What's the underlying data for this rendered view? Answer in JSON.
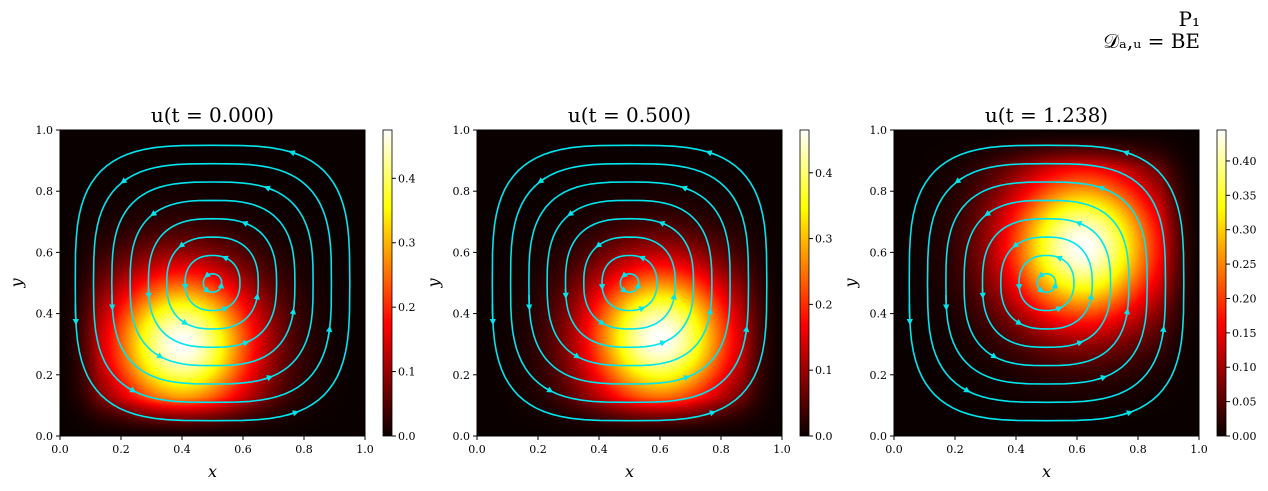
{
  "figure": {
    "suptitle_line1": "P₁",
    "suptitle_line2": "𝒟ₐ,ᵤ = BE"
  },
  "colors": {
    "streamline": "#00e5ee",
    "colormap": "hot"
  },
  "chart_data": [
    {
      "type": "heatmap",
      "title": "u(t = 0.000)",
      "xlabel": "x",
      "ylabel": "y",
      "xlim": [
        0,
        1
      ],
      "ylim": [
        0,
        1
      ],
      "xticks": [
        "0.0",
        "0.2",
        "0.4",
        "0.6",
        "0.8",
        "1.0"
      ],
      "yticks": [
        "0.0",
        "0.2",
        "0.4",
        "0.6",
        "0.8",
        "1.0"
      ],
      "colorbar": {
        "min": 0.0,
        "max": 0.475,
        "ticks": [
          "0.0",
          "0.1",
          "0.2",
          "0.3",
          "0.4"
        ],
        "tick_values": [
          0.0,
          0.1,
          0.2,
          0.3,
          0.4
        ]
      },
      "blob": {
        "cx": 0.4,
        "cy": 0.3,
        "sigma": 0.17,
        "peak": 0.475
      },
      "streamlines": "circulating vortex centered at (0.5, 0.5)"
    },
    {
      "type": "heatmap",
      "title": "u(t = 0.500)",
      "xlabel": "x",
      "ylabel": "y",
      "xlim": [
        0,
        1
      ],
      "ylim": [
        0,
        1
      ],
      "xticks": [
        "0.0",
        "0.2",
        "0.4",
        "0.6",
        "0.8",
        "1.0"
      ],
      "yticks": [
        "0.0",
        "0.2",
        "0.4",
        "0.6",
        "0.8",
        "1.0"
      ],
      "colorbar": {
        "min": 0.0,
        "max": 0.465,
        "ticks": [
          "0.0",
          "0.1",
          "0.2",
          "0.3",
          "0.4"
        ],
        "tick_values": [
          0.0,
          0.1,
          0.2,
          0.3,
          0.4
        ]
      },
      "blob": {
        "cx": 0.6,
        "cy": 0.32,
        "sigma": 0.17,
        "peak": 0.465
      },
      "streamlines": "circulating vortex centered at (0.5, 0.5)"
    },
    {
      "type": "heatmap",
      "title": "u(t = 1.238)",
      "xlabel": "x",
      "ylabel": "y",
      "xlim": [
        0,
        1
      ],
      "ylim": [
        0,
        1
      ],
      "xticks": [
        "0.0",
        "0.2",
        "0.4",
        "0.6",
        "0.8",
        "1.0"
      ],
      "yticks": [
        "0.0",
        "0.2",
        "0.4",
        "0.6",
        "0.8",
        "1.0"
      ],
      "colorbar": {
        "min": 0.0,
        "max": 0.445,
        "ticks": [
          "0.00",
          "0.05",
          "0.10",
          "0.15",
          "0.20",
          "0.25",
          "0.30",
          "0.35",
          "0.40"
        ],
        "tick_values": [
          0.0,
          0.05,
          0.1,
          0.15,
          0.2,
          0.25,
          0.3,
          0.35,
          0.4
        ]
      },
      "blob": {
        "cx": 0.62,
        "cy": 0.62,
        "sigma": 0.18,
        "peak": 0.445
      },
      "streamlines": "circulating vortex centered at (0.5, 0.5)"
    }
  ]
}
